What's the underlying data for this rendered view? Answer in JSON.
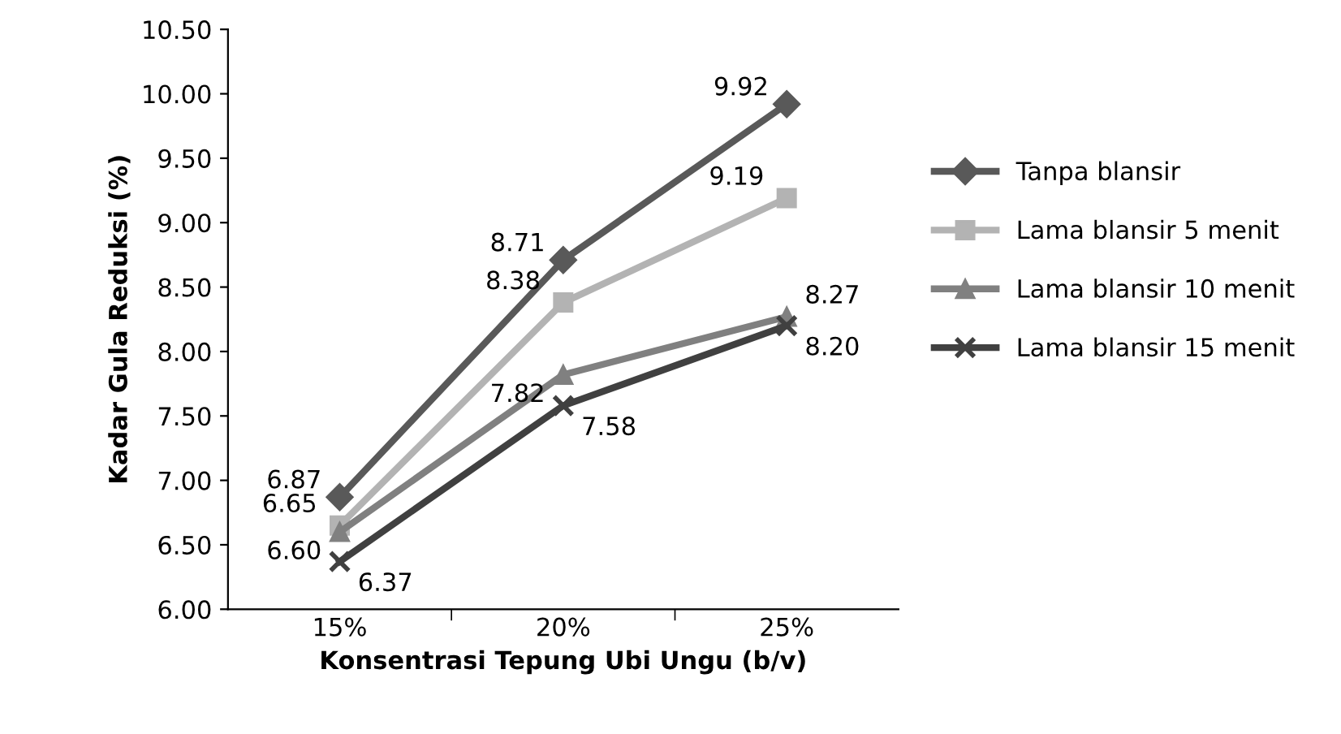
{
  "chart_data": {
    "type": "line",
    "xlabel": "Konsentrasi Tepung Ubi Ungu (b/v)",
    "ylabel": "Kadar Gula Reduksi (%)",
    "categories": [
      "15%",
      "20%",
      "25%"
    ],
    "series": [
      {
        "name": "Tanpa blansir",
        "color": "#595959",
        "marker": "diamond",
        "values": [
          6.87,
          8.71,
          9.92
        ],
        "value_labels": [
          "6.87",
          "8.71",
          "9.92"
        ]
      },
      {
        "name": "Lama blansir 5 menit",
        "color": "#b3b3b3",
        "marker": "square",
        "values": [
          6.65,
          8.38,
          9.19
        ],
        "value_labels": [
          "6.65",
          "8.38",
          "9.19"
        ]
      },
      {
        "name": "Lama blansir 10 menit",
        "color": "#808080",
        "marker": "triangle",
        "values": [
          6.6,
          7.82,
          8.27
        ],
        "value_labels": [
          "6.60",
          "7.82",
          "8.27"
        ]
      },
      {
        "name": "Lama blansir 15 menit",
        "color": "#404040",
        "marker": "cross",
        "values": [
          6.37,
          7.58,
          8.2
        ],
        "value_labels": [
          "6.37",
          "7.58",
          "8.20"
        ]
      }
    ],
    "ylim": [
      6.0,
      10.5
    ],
    "yticks": [
      {
        "value": 6.0,
        "label": "6.00"
      },
      {
        "value": 6.5,
        "label": "6.50"
      },
      {
        "value": 7.0,
        "label": "7.00"
      },
      {
        "value": 7.5,
        "label": "7.50"
      },
      {
        "value": 8.0,
        "label": "8.00"
      },
      {
        "value": 8.5,
        "label": "8.50"
      },
      {
        "value": 9.0,
        "label": "9.00"
      },
      {
        "value": 9.5,
        "label": "9.50"
      },
      {
        "value": 10.0,
        "label": "10.00"
      },
      {
        "value": 10.5,
        "label": "10.50"
      }
    ],
    "grid": false,
    "legend": "right",
    "line_style": "solid"
  }
}
